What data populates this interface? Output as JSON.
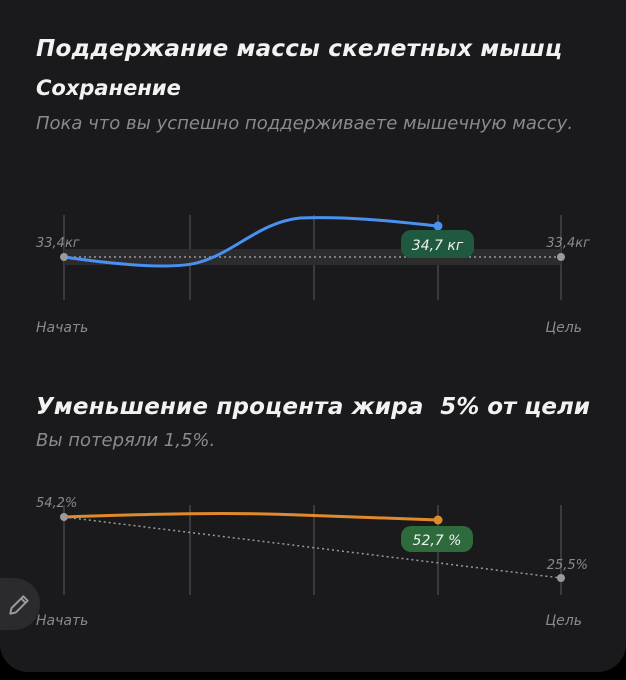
{
  "muscle": {
    "title": "Поддержание массы скелетных мышц",
    "status": "Сохранение",
    "description": "Пока что вы успешно поддерживаете мышечную массу.",
    "start_value": "33,4кг",
    "current_value": "34,7 кг",
    "goal_value": "33,4кг",
    "start_label": "Начать",
    "goal_label": "Цель",
    "line_color": "#4a90f0",
    "badge_color": "#1f5a40"
  },
  "fat": {
    "title": "Уменьшение процента жира",
    "goal_percent": "5% от цели",
    "description": "Вы потеряли 1,5%.",
    "start_value": "54,2%",
    "current_value": "52,7 %",
    "goal_value": "25,5%",
    "start_label": "Начать",
    "goal_label": "Цель",
    "line_color": "#e08a2c",
    "badge_color": "#2d6a3c"
  },
  "icons": {
    "edit": "pencil-icon"
  }
}
